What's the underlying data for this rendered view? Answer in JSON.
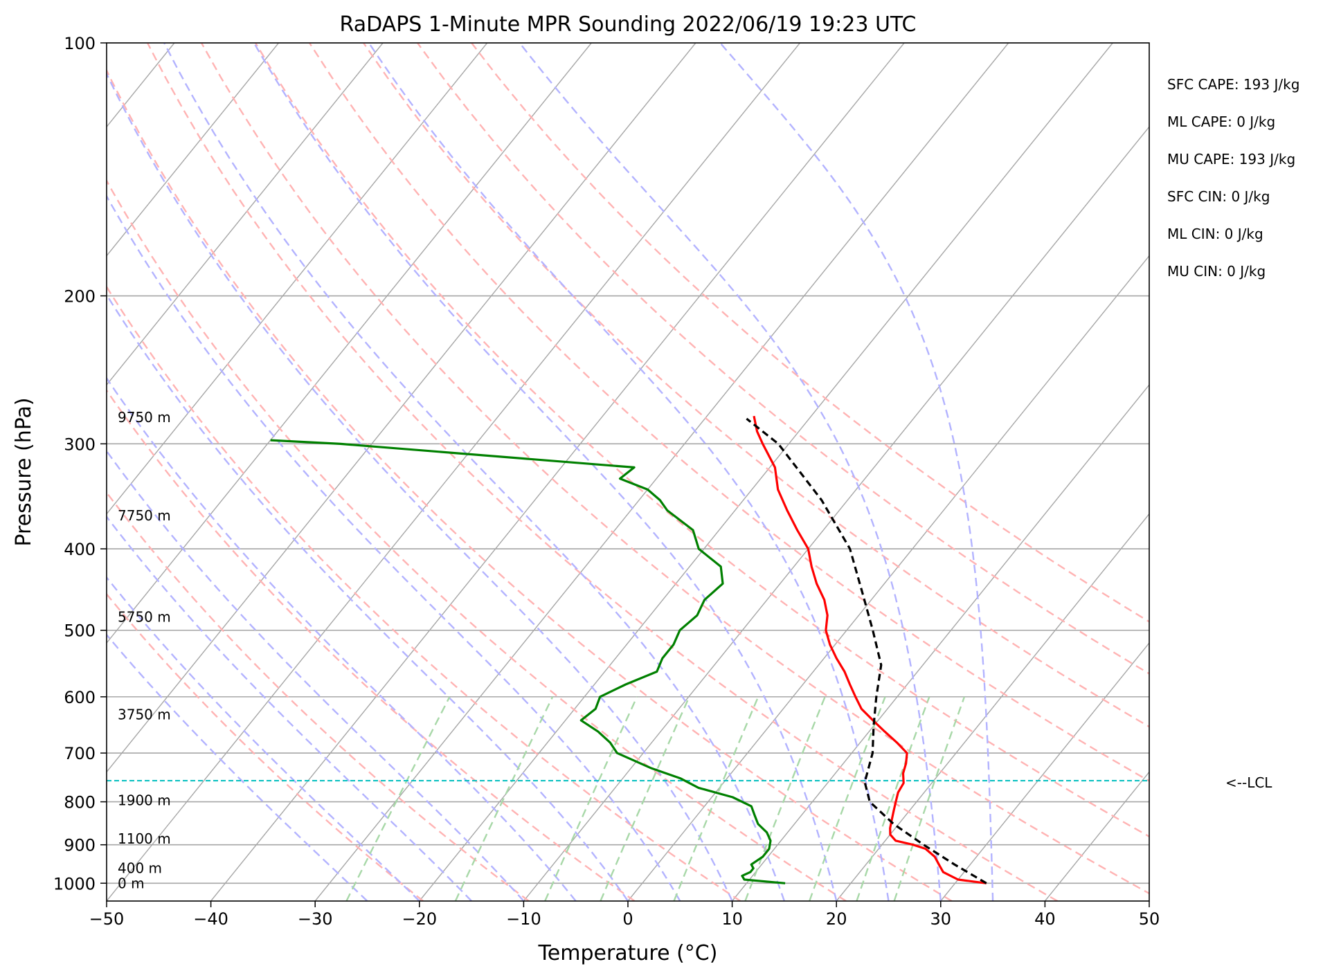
{
  "chart_data": {
    "type": "line",
    "subtype": "skew-t log-p sounding",
    "title": "RaDAPS 1-Minute MPR Sounding 2022/06/19 19:23 UTC",
    "xlabel": "Temperature (°C)",
    "ylabel": "Pressure (hPa)",
    "xlim": [
      -50,
      50
    ],
    "ylim": [
      1050,
      100
    ],
    "y_scale": "log",
    "grid": true,
    "x_ticks": [
      -50,
      -40,
      -30,
      -20,
      -10,
      0,
      10,
      20,
      30,
      40,
      50
    ],
    "y_ticks": [
      100,
      200,
      300,
      400,
      500,
      600,
      700,
      800,
      900,
      1000
    ],
    "isotherm_temps": [
      -170,
      -160,
      -150,
      -140,
      -130,
      -120,
      -110,
      -100,
      -90,
      -80,
      -70,
      -60,
      -50,
      -40,
      -30,
      -20,
      -10,
      0,
      10,
      20,
      30,
      40,
      50
    ],
    "dry_adiabat_thetas": [
      250,
      260,
      270,
      280,
      290,
      300,
      310,
      320,
      330,
      340,
      350,
      360,
      370
    ],
    "moist_adiabat_start_temps": [
      -25,
      -20,
      -15,
      -10,
      -5,
      0,
      5,
      10,
      15,
      20,
      25,
      30,
      35
    ],
    "mixing_ratio_lines_gkg": [
      0.4,
      1,
      2,
      3,
      5,
      8,
      12,
      16,
      20
    ],
    "series": [
      {
        "name": "",
        "variable": "temperature",
        "color": "#ff0000",
        "pressure": [
          1000,
          990,
          970,
          950,
          930,
          910,
          900,
          890,
          875,
          860,
          840,
          820,
          800,
          780,
          760,
          740,
          720,
          700,
          680,
          660,
          640,
          620,
          600,
          580,
          560,
          540,
          520,
          500,
          480,
          460,
          440,
          420,
          400,
          380,
          360,
          340,
          320,
          300,
          290,
          278
        ],
        "values": [
          33.0,
          30.0,
          28.0,
          27.0,
          26.0,
          24.5,
          23.0,
          21.0,
          20.0,
          19.5,
          19.0,
          18.5,
          18.0,
          17.5,
          17.3,
          16.5,
          16.0,
          15.3,
          13.5,
          11.5,
          9.5,
          7.5,
          6.0,
          4.5,
          3.0,
          1.2,
          -0.5,
          -2.0,
          -3.0,
          -4.5,
          -6.5,
          -8.3,
          -10.0,
          -12.5,
          -15.0,
          -17.5,
          -19.5,
          -22.5,
          -24.0,
          -25.5
        ]
      },
      {
        "name": "",
        "variable": "dewpoint",
        "color": "#008000",
        "pressure": [
          1000,
          990,
          980,
          970,
          960,
          950,
          930,
          910,
          890,
          870,
          850,
          830,
          810,
          790,
          770,
          750,
          730,
          700,
          680,
          660,
          640,
          620,
          600,
          580,
          560,
          540,
          520,
          500,
          480,
          460,
          440,
          420,
          400,
          380,
          360,
          350,
          340,
          330,
          320,
          300,
          297
        ],
        "values": [
          13.7,
          9.5,
          9.0,
          9.5,
          9.5,
          9.0,
          9.5,
          9.5,
          9.0,
          8.0,
          6.5,
          5.5,
          4.5,
          2.0,
          -2.0,
          -4.5,
          -8.0,
          -12.5,
          -14.0,
          -16.0,
          -18.5,
          -18.0,
          -18.5,
          -17.0,
          -15.0,
          -15.5,
          -15.5,
          -16.0,
          -15.5,
          -16.0,
          -15.5,
          -17.0,
          -20.5,
          -22.5,
          -26.5,
          -28.0,
          -30.0,
          -33.5,
          -33.0,
          -63.0,
          -70.0
        ]
      },
      {
        "name": "",
        "variable": "parcel profile",
        "color": "#000000",
        "style": "dashed",
        "pressure": [
          1000,
          950,
          900,
          850,
          800,
          758,
          700,
          650,
          600,
          550,
          500,
          450,
          400,
          350,
          300,
          280
        ],
        "values": [
          33.0,
          28.5,
          24.0,
          19.5,
          15.5,
          13.5,
          12.0,
          10.0,
          8.0,
          6.0,
          2.5,
          -1.5,
          -6.0,
          -12.5,
          -21.0,
          -26.0
        ]
      }
    ],
    "lcl_pressure_hpa": 755,
    "lcl_label": "<--LCL",
    "height_labels": [
      {
        "text": "9750 m",
        "pressure": 279
      },
      {
        "text": "7750 m",
        "pressure": 365
      },
      {
        "text": "5750 m",
        "pressure": 482
      },
      {
        "text": "3750 m",
        "pressure": 630
      },
      {
        "text": "1900 m",
        "pressure": 797
      },
      {
        "text": "1100 m",
        "pressure": 885
      },
      {
        "text": "400 m",
        "pressure": 960
      },
      {
        "text": "0 m",
        "pressure": 1000
      }
    ],
    "stats": [
      "SFC CAPE: 193 J/kg",
      "ML CAPE: 0 J/kg",
      "MU CAPE: 193 J/kg",
      "SFC CIN: 0 J/kg",
      "ML CIN: 0 J/kg",
      "MU CIN: 0 J/kg"
    ],
    "colors": {
      "temperature": "#ff0000",
      "dewpoint": "#008000",
      "parcel": "#000000",
      "lcl": "#00bfbf",
      "dry_adiabat": "#ffb3b3",
      "moist_adiabat": "#b3b3ff",
      "mixing_ratio": "#a8d8a8",
      "isotherm": "#a6a6a6",
      "isobar": "#a6a6a6"
    }
  }
}
